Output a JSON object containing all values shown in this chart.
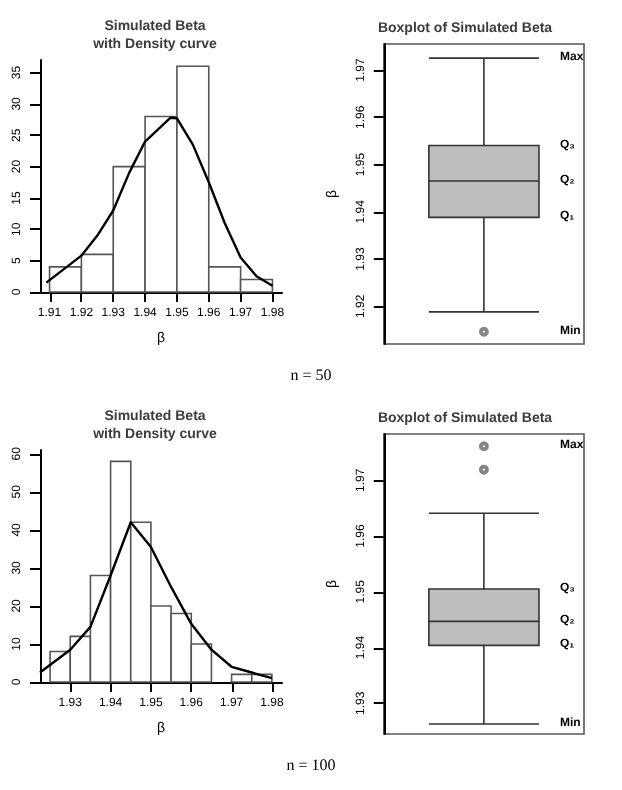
{
  "chart_data": [
    {
      "type": "histogram",
      "title": "Simulated Beta\nwith Density curve",
      "xlabel": "β",
      "bins": [
        1.91,
        1.92,
        1.93,
        1.94,
        1.95,
        1.96,
        1.97,
        1.98
      ],
      "values": [
        4,
        6,
        20,
        28,
        36,
        4,
        2
      ],
      "color": "#ffffff",
      "xlim": [
        1.907,
        1.983
      ],
      "xticks": [
        1.91,
        1.92,
        1.93,
        1.94,
        1.95,
        1.96,
        1.97,
        1.98
      ],
      "ylim": [
        0,
        37
      ],
      "yticks": [
        0,
        5,
        10,
        15,
        20,
        25,
        30,
        35
      ],
      "grid": false,
      "marker": "none",
      "annotations": [
        "n = 50"
      ],
      "series": [
        {
          "type": "line",
          "color": "#000000",
          "x": [
            1.909,
            1.92,
            1.925,
            1.93,
            1.935,
            1.94,
            1.948,
            1.95,
            1.955,
            1.96,
            1.965,
            1.97,
            1.975,
            1.98
          ],
          "values": [
            1.5,
            5.8,
            9,
            13,
            19,
            24,
            27.8,
            27.7,
            23.5,
            17.5,
            11,
            5.5,
            2.5,
            1
          ]
        }
      ]
    },
    {
      "type": "box",
      "title": "Boxplot of Simulated Beta",
      "ylabel": "β",
      "categories": [
        null
      ],
      "color": "#bebebe",
      "boxes": [
        {
          "low": 1.9188,
          "q1": 1.9388,
          "median": 1.9465,
          "q3": 1.954,
          "high": 1.9725,
          "outliers": [
            1.9146
          ]
        }
      ],
      "ylim": [
        1.912,
        1.9755
      ],
      "yticks": [
        1.92,
        1.93,
        1.94,
        1.95,
        1.96,
        1.97
      ],
      "grid": false,
      "annotations": [
        "Max",
        "Q₃",
        "Q₂",
        "Q₁",
        "Min"
      ]
    },
    {
      "type": "histogram",
      "title": "Simulated Beta\nwith Density curve",
      "xlabel": "β",
      "bins": [
        1.925,
        1.93,
        1.935,
        1.94,
        1.945,
        1.95,
        1.955,
        1.96,
        1.965,
        1.97,
        1.975,
        1.98
      ],
      "values": [
        8,
        12,
        28,
        58,
        42,
        20,
        18,
        10,
        0,
        2,
        2
      ],
      "color": "#ffffff",
      "xlim": [
        1.9225,
        1.9825
      ],
      "xticks": [
        1.93,
        1.94,
        1.95,
        1.96,
        1.97,
        1.98
      ],
      "ylim": [
        0,
        61
      ],
      "yticks": [
        0,
        10,
        20,
        30,
        40,
        50,
        60
      ],
      "grid": false,
      "marker": "none",
      "annotations": [
        "n = 100"
      ],
      "series": [
        {
          "type": "line",
          "color": "#000000",
          "x": [
            1.9225,
            1.93,
            1.935,
            1.94,
            1.945,
            1.95,
            1.955,
            1.96,
            1.965,
            1.97,
            1.975,
            1.98
          ],
          "values": [
            2.5,
            8.5,
            14.5,
            28,
            42,
            35.5,
            25,
            15.3,
            8.5,
            4,
            2.5,
            1
          ]
        }
      ]
    },
    {
      "type": "box",
      "title": "Boxplot of Simulated Beta",
      "ylabel": "β",
      "categories": [
        null
      ],
      "color": "#bebebe",
      "boxes": [
        {
          "low": 1.9263,
          "q1": 1.9404,
          "median": 1.9447,
          "q3": 1.9505,
          "high": 1.9641,
          "outliers": [
            1.9719,
            1.9761
          ]
        }
      ],
      "ylim": [
        1.9245,
        1.9783
      ],
      "yticks": [
        1.93,
        1.94,
        1.95,
        1.96,
        1.97
      ],
      "grid": false,
      "annotations": [
        "Max",
        "Q₃",
        "Q₂",
        "Q₁",
        "Min"
      ]
    }
  ]
}
